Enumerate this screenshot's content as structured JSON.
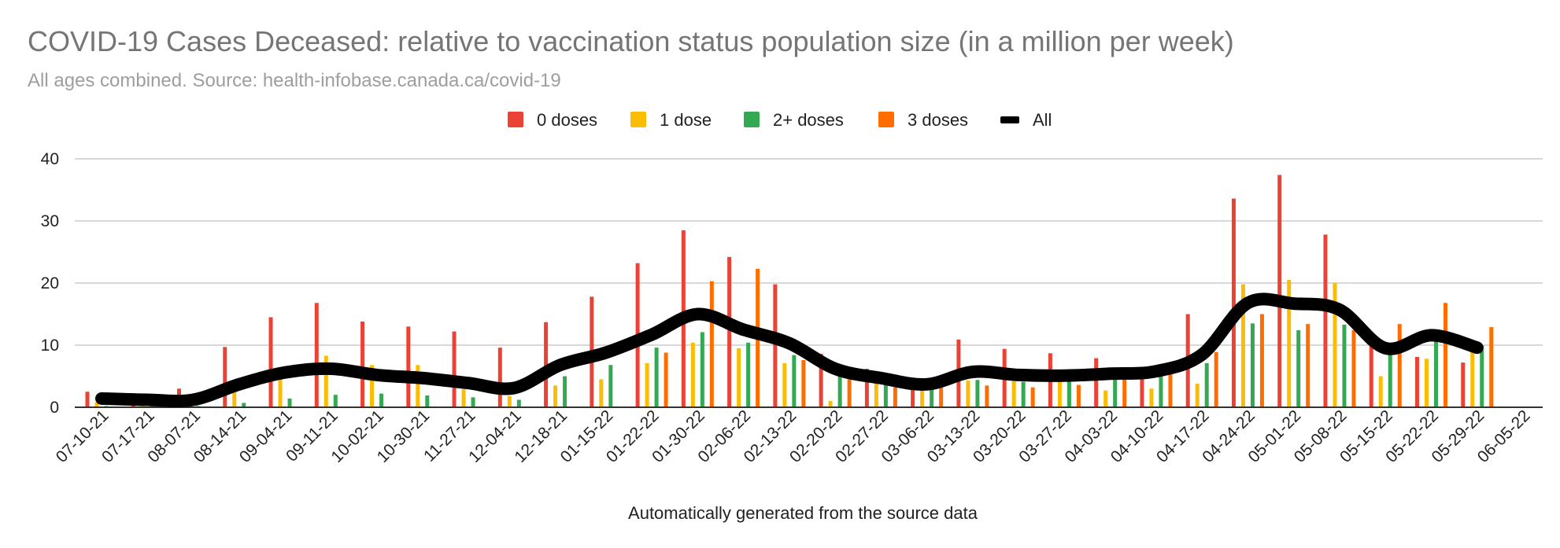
{
  "chart_data": {
    "type": "bar",
    "title": "COVID-19 Cases Deceased: relative to vaccination status population size (in a million per week)",
    "subtitle": "All ages combined. Source: health-infobase.canada.ca/covid-19",
    "xlabel": "Automatically generated from the source data",
    "ylabel": "",
    "ylim": [
      0,
      40
    ],
    "yticks": [
      "0",
      "10",
      "20",
      "30",
      "40"
    ],
    "grid": true,
    "legend_position": "top",
    "categories": [
      "07-10-21",
      "07-17-21",
      "08-07-21",
      "08-14-21",
      "09-04-21",
      "09-11-21",
      "10-02-21",
      "10-30-21",
      "11-27-21",
      "12-04-21",
      "12-18-21",
      "01-15-22",
      "01-22-22",
      "01-30-22",
      "02-06-22",
      "02-13-22",
      "02-20-22",
      "02-27-22",
      "03-06-22",
      "03-13-22",
      "03-20-22",
      "03-27-22",
      "04-03-22",
      "04-10-22",
      "04-17-22",
      "04-24-22",
      "05-01-22",
      "05-08-22",
      "05-15-22",
      "05-22-22",
      "05-29-22",
      "06-05-22"
    ],
    "series": [
      {
        "name": "0 doses",
        "color": "#ea4335",
        "type": "bar",
        "values": [
          2.5,
          2.2,
          3.0,
          9.7,
          14.5,
          16.8,
          13.8,
          13.0,
          12.2,
          9.6,
          13.7,
          17.8,
          23.2,
          28.5,
          24.2,
          19.8,
          8.6,
          6.2,
          4.0,
          10.9,
          9.4,
          8.7,
          7.9,
          6.5,
          15.0,
          33.6,
          37.4,
          27.8,
          10.1,
          8.1,
          7.2,
          null
        ]
      },
      {
        "name": "1 dose",
        "color": "#fbbc04",
        "type": "bar",
        "values": [
          0.8,
          0.5,
          0.6,
          3.0,
          6.0,
          8.3,
          6.8,
          6.8,
          2.9,
          1.8,
          3.5,
          4.5,
          7.1,
          10.4,
          9.5,
          7.1,
          1.0,
          4.0,
          3.9,
          4.3,
          4.2,
          4.4,
          2.7,
          3.0,
          3.8,
          19.8,
          20.5,
          20.0,
          5.0,
          7.8,
          9.0,
          null
        ]
      },
      {
        "name": "2+ doses",
        "color": "#34a853",
        "type": "bar",
        "values": [
          0.2,
          0.2,
          0.2,
          0.7,
          1.4,
          2.0,
          2.2,
          1.9,
          1.6,
          1.2,
          5.0,
          6.8,
          9.6,
          12.1,
          10.4,
          8.4,
          5.5,
          4.0,
          3.1,
          4.4,
          4.1,
          4.5,
          4.9,
          5.3,
          7.1,
          13.5,
          12.4,
          13.3,
          9.2,
          10.9,
          10.0,
          null
        ]
      },
      {
        "name": "3 doses",
        "color": "#ff6d01",
        "type": "bar",
        "values": [
          null,
          null,
          null,
          null,
          null,
          null,
          null,
          null,
          null,
          null,
          null,
          null,
          8.8,
          20.3,
          22.3,
          7.6,
          4.5,
          3.2,
          3.3,
          3.5,
          3.2,
          3.6,
          5.0,
          5.8,
          8.9,
          15.0,
          13.4,
          12.4,
          13.4,
          16.8,
          12.9,
          null
        ]
      },
      {
        "name": "All",
        "color": "#000000",
        "type": "line",
        "values": [
          1.4,
          1.2,
          1.2,
          3.7,
          5.6,
          6.2,
          5.2,
          4.7,
          3.9,
          3.1,
          6.8,
          8.8,
          11.7,
          15.0,
          12.5,
          10.3,
          6.2,
          4.7,
          3.7,
          5.7,
          5.2,
          5.1,
          5.4,
          5.8,
          8.5,
          16.8,
          16.7,
          15.7,
          9.5,
          11.6,
          9.6,
          null
        ]
      }
    ]
  }
}
